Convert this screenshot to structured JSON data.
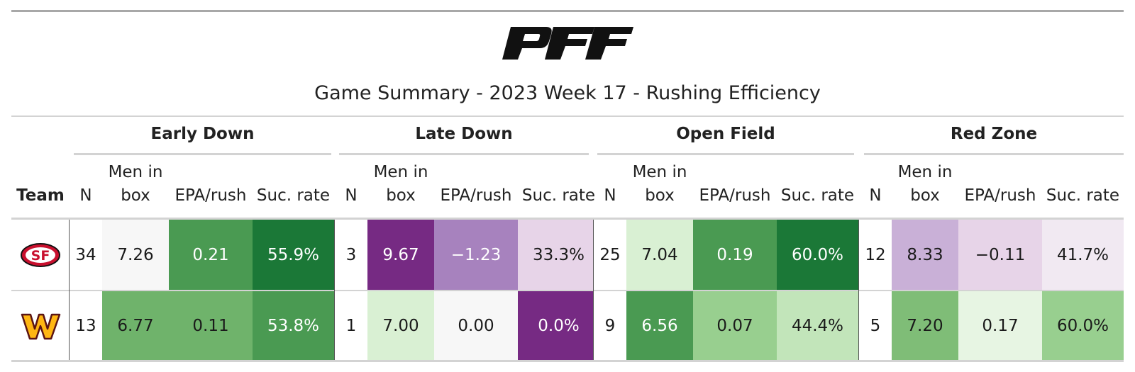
{
  "title": "Game Summary - 2023 Week 17 - Rushing Efficiency",
  "logo_text": "PFF",
  "groups": [
    "Early Down",
    "Late Down",
    "Open Field",
    "Red Zone"
  ],
  "col_team": "Team",
  "col_n": "N",
  "col_men_line1": "Men in",
  "col_men_line2": "box",
  "col_epa": "EPA/rush",
  "col_suc": "Suc. rate",
  "rows": [
    {
      "team_logo": "49ers-logo",
      "cells": [
        {
          "v": "34",
          "bg": "#ffffff",
          "fg": "#1a1a1a"
        },
        {
          "v": "7.26",
          "bg": "#f7f7f7",
          "fg": "#1a1a1a"
        },
        {
          "v": "0.21",
          "bg": "#4a9a52",
          "fg": "#ffffff"
        },
        {
          "v": "55.9%",
          "bg": "#1b7837",
          "fg": "#ffffff"
        },
        {
          "v": "3",
          "bg": "#ffffff",
          "fg": "#1a1a1a"
        },
        {
          "v": "9.67",
          "bg": "#762a83",
          "fg": "#ffffff"
        },
        {
          "v": "−1.23",
          "bg": "#a782be",
          "fg": "#ffffff"
        },
        {
          "v": "33.3%",
          "bg": "#e7d4e8",
          "fg": "#1a1a1a"
        },
        {
          "v": "25",
          "bg": "#ffffff",
          "fg": "#1a1a1a"
        },
        {
          "v": "7.04",
          "bg": "#d9f0d3",
          "fg": "#1a1a1a"
        },
        {
          "v": "0.19",
          "bg": "#4a9a52",
          "fg": "#ffffff"
        },
        {
          "v": "60.0%",
          "bg": "#1b7837",
          "fg": "#ffffff"
        },
        {
          "v": "12",
          "bg": "#ffffff",
          "fg": "#1a1a1a"
        },
        {
          "v": "8.33",
          "bg": "#c9b0d7",
          "fg": "#1a1a1a"
        },
        {
          "v": "−0.11",
          "bg": "#e7d4e8",
          "fg": "#1a1a1a"
        },
        {
          "v": "41.7%",
          "bg": "#f1e9f2",
          "fg": "#1a1a1a"
        }
      ]
    },
    {
      "team_logo": "commanders-logo",
      "cells": [
        {
          "v": "13",
          "bg": "#ffffff",
          "fg": "#1a1a1a"
        },
        {
          "v": "6.77",
          "bg": "#6fb36b",
          "fg": "#1a1a1a"
        },
        {
          "v": "0.11",
          "bg": "#6fb36b",
          "fg": "#1a1a1a"
        },
        {
          "v": "53.8%",
          "bg": "#4a9a52",
          "fg": "#ffffff"
        },
        {
          "v": "1",
          "bg": "#ffffff",
          "fg": "#1a1a1a"
        },
        {
          "v": "7.00",
          "bg": "#d9f0d3",
          "fg": "#1a1a1a"
        },
        {
          "v": "0.00",
          "bg": "#f7f7f7",
          "fg": "#1a1a1a"
        },
        {
          "v": "0.0%",
          "bg": "#762a83",
          "fg": "#ffffff"
        },
        {
          "v": "9",
          "bg": "#ffffff",
          "fg": "#1a1a1a"
        },
        {
          "v": "6.56",
          "bg": "#4a9a52",
          "fg": "#ffffff"
        },
        {
          "v": "0.07",
          "bg": "#98cf8f",
          "fg": "#1a1a1a"
        },
        {
          "v": "44.4%",
          "bg": "#c2e5ba",
          "fg": "#1a1a1a"
        },
        {
          "v": "5",
          "bg": "#ffffff",
          "fg": "#1a1a1a"
        },
        {
          "v": "7.20",
          "bg": "#7fbd77",
          "fg": "#1a1a1a"
        },
        {
          "v": "0.17",
          "bg": "#e7f5e3",
          "fg": "#1a1a1a"
        },
        {
          "v": "60.0%",
          "bg": "#98cf8f",
          "fg": "#1a1a1a"
        }
      ]
    }
  ]
}
